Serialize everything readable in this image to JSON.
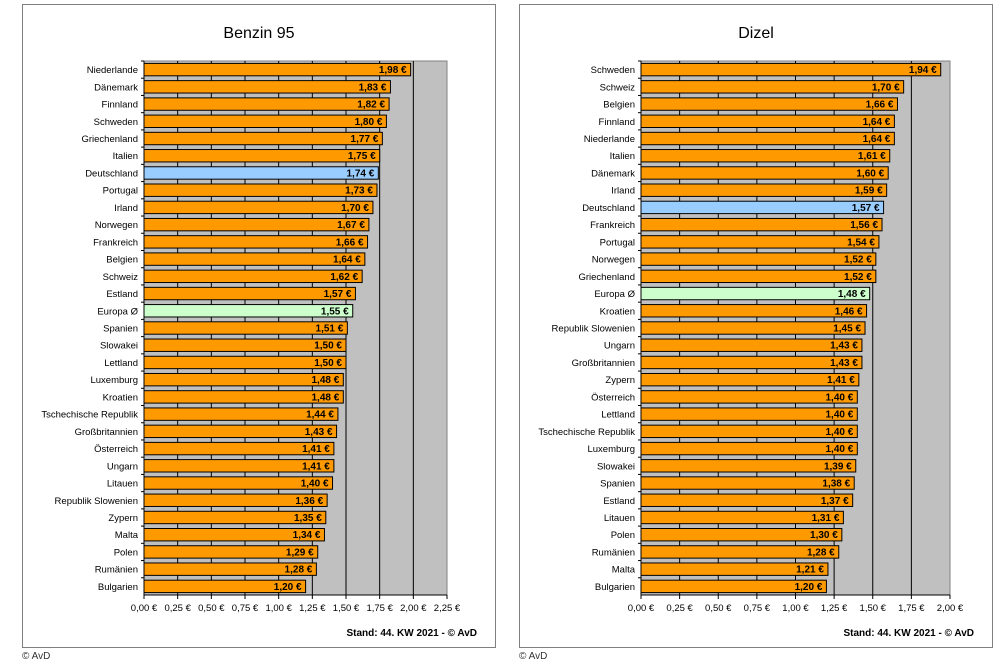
{
  "chart_data": [
    {
      "type": "bar",
      "orientation": "horizontal",
      "title": "Benzin 95",
      "footer": "Stand: 44. KW 2021 - © AvD",
      "x_ticks": [
        "0,00 €",
        "0,25 €",
        "0,50 €",
        "0,75 €",
        "1,00 €",
        "1,25 €",
        "1,50 €",
        "1,75 €",
        "2,00 €",
        "2,25 €"
      ],
      "xlim": [
        0,
        2.25
      ],
      "grid": "vertical",
      "colors": {
        "default": "#ff9900",
        "highlight": "#99ccff",
        "average": "#ccffcc",
        "plot_bg": "#c0c0c0"
      },
      "categories": [
        "Niederlande",
        "Dänemark",
        "Finnland",
        "Schweden",
        "Griechenland",
        "Italien",
        "Deutschland",
        "Portugal",
        "Irland",
        "Norwegen",
        "Frankreich",
        "Belgien",
        "Schweiz",
        "Estland",
        "Europa Ø",
        "Spanien",
        "Slowakei",
        "Lettland",
        "Luxemburg",
        "Kroatien",
        "Tschechische Republik",
        "Großbritannien",
        "Österreich",
        "Ungarn",
        "Litauen",
        "Republik Slowenien",
        "Zypern",
        "Malta",
        "Polen",
        "Rumänien",
        "Bulgarien"
      ],
      "values": [
        1.98,
        1.83,
        1.82,
        1.8,
        1.77,
        1.75,
        1.74,
        1.73,
        1.7,
        1.67,
        1.66,
        1.64,
        1.62,
        1.57,
        1.55,
        1.51,
        1.5,
        1.5,
        1.48,
        1.48,
        1.44,
        1.43,
        1.41,
        1.41,
        1.4,
        1.36,
        1.35,
        1.34,
        1.29,
        1.28,
        1.2
      ],
      "labels": [
        "1,98 €",
        "1,83 €",
        "1,82 €",
        "1,80 €",
        "1,77 €",
        "1,75 €",
        "1,74 €",
        "1,73 €",
        "1,70 €",
        "1,67 €",
        "1,66 €",
        "1,64 €",
        "1,62 €",
        "1,57 €",
        "1,55 €",
        "1,51 €",
        "1,50 €",
        "1,50 €",
        "1,48 €",
        "1,48 €",
        "1,44 €",
        "1,43 €",
        "1,41 €",
        "1,41 €",
        "1,40 €",
        "1,36 €",
        "1,35 €",
        "1,34 €",
        "1,29 €",
        "1,28 €",
        "1,20 €"
      ],
      "highlight": "Deutschland",
      "average": "Europa Ø"
    },
    {
      "type": "bar",
      "orientation": "horizontal",
      "title": "Dizel",
      "footer": "Stand: 44. KW 2021 - © AvD",
      "x_ticks": [
        "0,00 €",
        "0,25 €",
        "0,50 €",
        "0,75 €",
        "1,00 €",
        "1,25 €",
        "1,50 €",
        "1,75 €",
        "2,00 €"
      ],
      "xlim": [
        0,
        2.0
      ],
      "grid": "vertical",
      "colors": {
        "default": "#ff9900",
        "highlight": "#99ccff",
        "average": "#ccffcc",
        "plot_bg": "#c0c0c0"
      },
      "categories": [
        "Schweden",
        "Schweiz",
        "Belgien",
        "Finnland",
        "Niederlande",
        "Italien",
        "Dänemark",
        "Irland",
        "Deutschland",
        "Frankreich",
        "Portugal",
        "Norwegen",
        "Griechenland",
        "Europa Ø",
        "Kroatien",
        "Republik Slowenien",
        "Ungarn",
        "Großbritannien",
        "Zypern",
        "Österreich",
        "Lettland",
        "Tschechische Republik",
        "Luxemburg",
        "Slowakei",
        "Spanien",
        "Estland",
        "Litauen",
        "Polen",
        "Rumänien",
        "Malta",
        "Bulgarien"
      ],
      "values": [
        1.94,
        1.7,
        1.66,
        1.64,
        1.64,
        1.61,
        1.6,
        1.59,
        1.57,
        1.56,
        1.54,
        1.52,
        1.52,
        1.48,
        1.46,
        1.45,
        1.43,
        1.43,
        1.41,
        1.4,
        1.4,
        1.4,
        1.4,
        1.39,
        1.38,
        1.37,
        1.31,
        1.3,
        1.28,
        1.21,
        1.2
      ],
      "labels": [
        "1,94 €",
        "1,70 €",
        "1,66 €",
        "1,64 €",
        "1,64 €",
        "1,61 €",
        "1,60 €",
        "1,59 €",
        "1,57 €",
        "1,56 €",
        "1,54 €",
        "1,52 €",
        "1,52 €",
        "1,48 €",
        "1,46 €",
        "1,45 €",
        "1,43 €",
        "1,43 €",
        "1,41 €",
        "1,40 €",
        "1,40 €",
        "1,40 €",
        "1,40 €",
        "1,39 €",
        "1,38 €",
        "1,37 €",
        "1,31 €",
        "1,30 €",
        "1,28 €",
        "1,21 €",
        "1,20 €"
      ],
      "highlight": "Deutschland",
      "average": "Europa Ø"
    }
  ],
  "copyright": [
    "© AvD",
    "© AvD"
  ]
}
